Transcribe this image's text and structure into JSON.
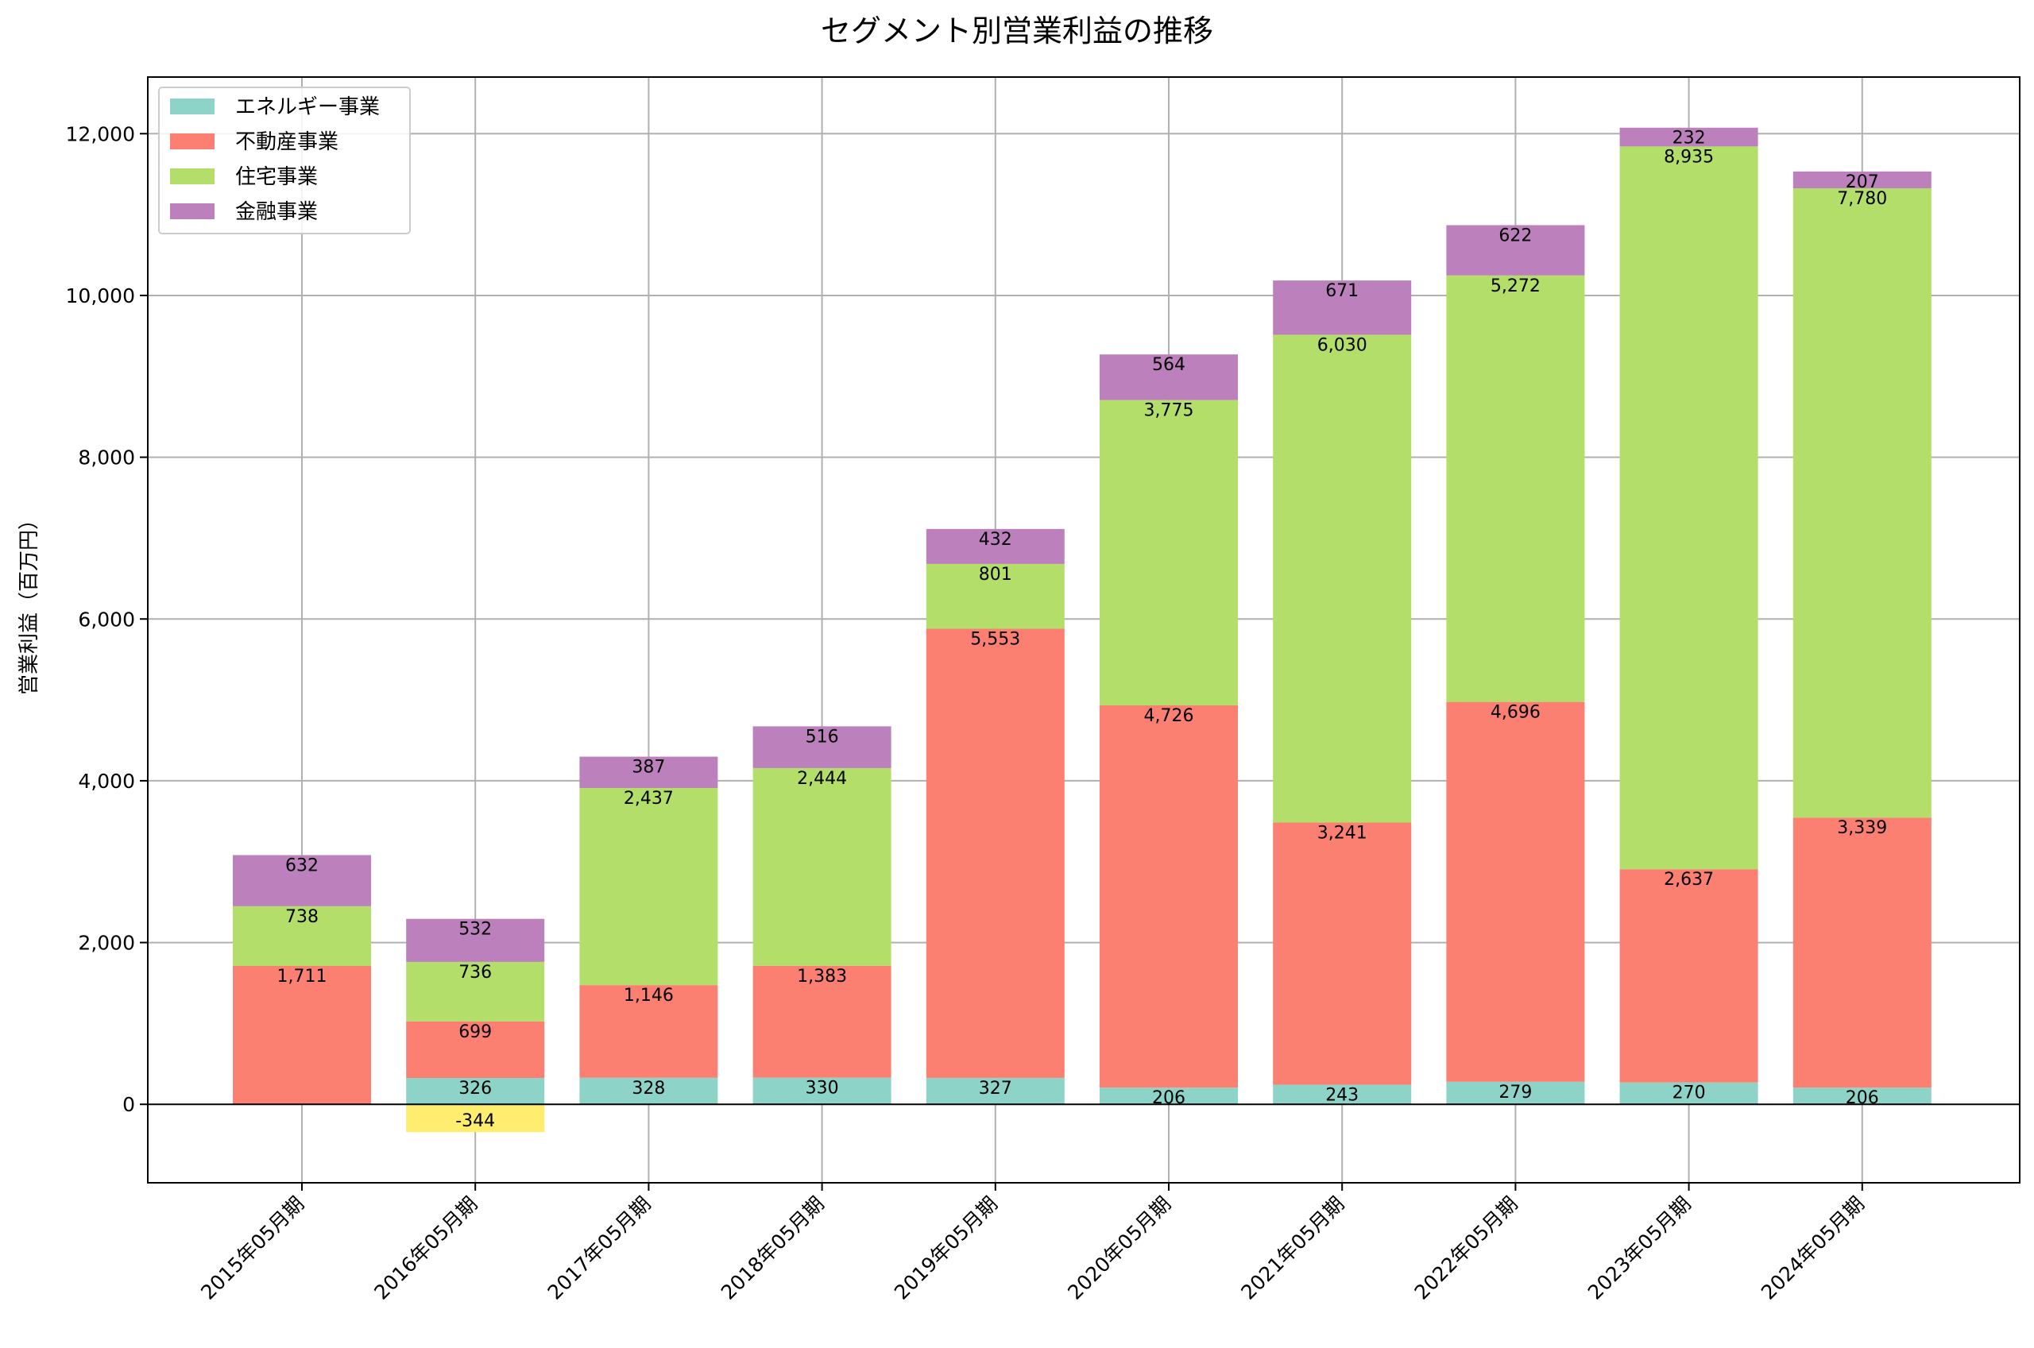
{
  "chart_data": {
    "type": "bar",
    "stacked": true,
    "title": "セグメント別営業利益の推移",
    "xlabel": "",
    "ylabel": "営業利益（百万円）",
    "ylim": [
      -970,
      12700
    ],
    "yticks": [
      0,
      2000,
      4000,
      6000,
      8000,
      10000,
      12000
    ],
    "ytick_labels": [
      "0",
      "2,000",
      "4,000",
      "6,000",
      "8,000",
      "10,000",
      "12,000"
    ],
    "grid": true,
    "legend_position": "top-left",
    "categories": [
      "2015年05月期",
      "2016年05月期",
      "2017年05月期",
      "2018年05月期",
      "2019年05月期",
      "2020年05月期",
      "2021年05月期",
      "2022年05月期",
      "2023年05月期",
      "2024年05月期"
    ],
    "negative_color": "#ffed6f",
    "series": [
      {
        "name": "エネルギー事業",
        "color": "#8dd3c7",
        "values": [
          0,
          -344,
          328,
          330,
          327,
          206,
          243,
          279,
          270,
          206
        ],
        "labels": [
          "",
          "-344",
          "328",
          "330",
          "327",
          "206",
          "243",
          "279",
          "270",
          "206"
        ]
      },
      {
        "name": "",
        "color": "#8dd3c7",
        "values": [
          0,
          326,
          0,
          0,
          0,
          0,
          0,
          0,
          0,
          0
        ],
        "labels": [
          "",
          "326",
          "",
          "",
          "",
          "",
          "",
          "",
          "",
          ""
        ],
        "legend": false
      },
      {
        "name": "不動産事業",
        "color": "#fb8072",
        "values": [
          1711,
          699,
          1146,
          1383,
          5553,
          4726,
          3241,
          4696,
          2637,
          3339
        ],
        "labels": [
          "1,711",
          "699",
          "1,146",
          "1,383",
          "5,553",
          "4,726",
          "3,241",
          "4,696",
          "2,637",
          "3,339"
        ]
      },
      {
        "name": "住宅事業",
        "color": "#b3de69",
        "values": [
          738,
          736,
          2437,
          2444,
          801,
          3775,
          6030,
          5272,
          8935,
          7780
        ],
        "labels": [
          "738",
          "736",
          "2,437",
          "2,444",
          "801",
          "3,775",
          "6,030",
          "5,272",
          "8,935",
          "7,780"
        ]
      },
      {
        "name": "金融事業",
        "color": "#bc80bd",
        "values": [
          632,
          532,
          387,
          516,
          432,
          564,
          671,
          622,
          232,
          207
        ],
        "labels": [
          "632",
          "532",
          "387",
          "516",
          "432",
          "564",
          "671",
          "622",
          "232",
          "207"
        ]
      }
    ]
  }
}
